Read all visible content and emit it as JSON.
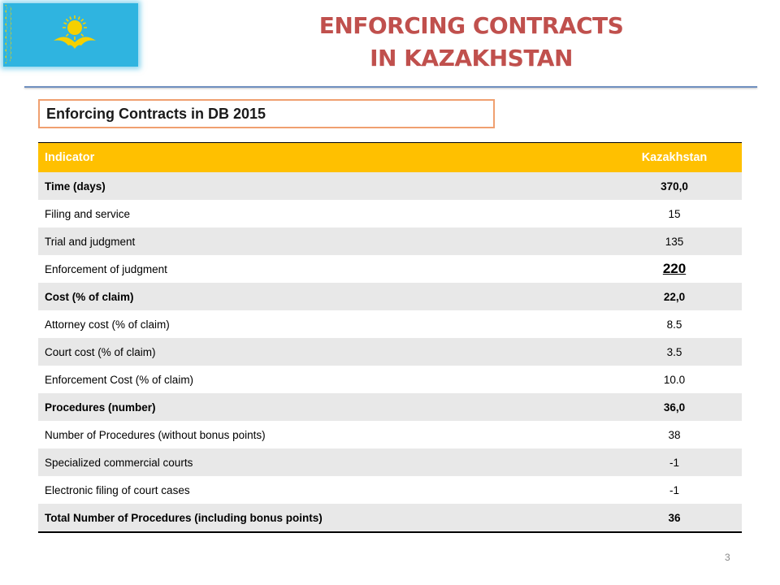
{
  "header": {
    "title_line1": "ENFORCING CONTRACTS",
    "title_line2": "IN KAZAKHSTAN",
    "flag_icon": "kazakhstan-flag-icon"
  },
  "subtitle": "Enforcing Contracts in DB 2015",
  "table": {
    "columns": [
      "Indicator",
      "Kazakhstan"
    ],
    "rows": [
      {
        "indicator": "Time (days)",
        "value": "370,0"
      },
      {
        "indicator": "Filing and service",
        "value": "15"
      },
      {
        "indicator": "Trial and judgment",
        "value": "135"
      },
      {
        "indicator": "Enforcement of judgment",
        "value": "220"
      },
      {
        "indicator": "Cost (% of claim)",
        "value": "22,0"
      },
      {
        "indicator": "Attorney cost (% of claim)",
        "value": "8.5"
      },
      {
        "indicator": "Court cost (% of claim)",
        "value": "3.5"
      },
      {
        "indicator": "Enforcement Cost (% of claim)",
        "value": "10.0"
      },
      {
        "indicator": "Procedures (number)",
        "value": "36,0"
      },
      {
        "indicator": "Number of Procedures (without bonus points)",
        "value": "38"
      },
      {
        "indicator": "Specialized commercial courts",
        "value": "-1"
      },
      {
        "indicator": "Electronic filing of court cases",
        "value": "-1"
      },
      {
        "indicator": "Total Number of Procedures  (including bonus points)",
        "value": "36"
      }
    ]
  },
  "footer": {
    "page_number": "3"
  },
  "colors": {
    "title": "#c0504d",
    "header_row": "#ffc000",
    "subtitle_border": "#f0a070",
    "flag_blue": "#2fb4e0",
    "flag_gold": "#f5d000",
    "row_stripe": "#e8e8e8"
  }
}
